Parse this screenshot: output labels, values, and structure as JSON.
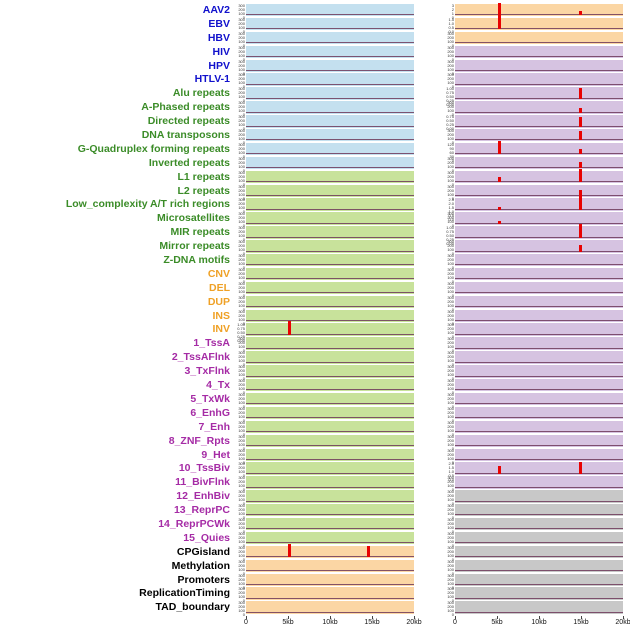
{
  "chart_data": {
    "type": "line",
    "title": "",
    "x_axis": {
      "tick_labels": [
        "0",
        "5kb",
        "10kb",
        "15kb",
        "20kb"
      ],
      "range_kb": [
        0,
        20
      ]
    },
    "default_yticks": [
      "300",
      "200",
      "100",
      "0"
    ],
    "group_colors": {
      "virus": "#1111cc",
      "repeat": "#3b8c28",
      "sv": "#efa126",
      "chromhmm": "#a52ba5",
      "other": "#000000"
    },
    "panel_colors": {
      "blue": "#c4e0ef",
      "green": "#c8e29b",
      "peach": "#fbd6a4",
      "purple": "#d6c3e1",
      "gray": "#c8c8c8"
    },
    "spike_color": "#e80202",
    "baseline_color": "#6e3a5a",
    "tracks": [
      {
        "label": "AAV2",
        "group": "virus",
        "left": {
          "bg": "blue"
        },
        "right": {
          "bg": "peach",
          "yticks": [
            "3",
            "2",
            "1",
            "0"
          ],
          "spikes": [
            {
              "x_kb": 5.3,
              "h": 1.15
            },
            {
              "x_kb": 14.9,
              "h": 0.4
            }
          ]
        }
      },
      {
        "label": "EBV",
        "group": "virus",
        "left": {
          "bg": "blue"
        },
        "right": {
          "bg": "peach",
          "yticks": [
            "1.5",
            "1.0",
            "0.5",
            "0.0"
          ],
          "spikes": [
            {
              "x_kb": 5.3,
              "h": 1.3
            }
          ]
        }
      },
      {
        "label": "HBV",
        "group": "virus",
        "left": {
          "bg": "blue"
        },
        "right": {
          "bg": "peach"
        }
      },
      {
        "label": "HIV",
        "group": "virus",
        "left": {
          "bg": "blue"
        },
        "right": {
          "bg": "purple"
        }
      },
      {
        "label": "HPV",
        "group": "virus",
        "left": {
          "bg": "blue"
        },
        "right": {
          "bg": "purple"
        }
      },
      {
        "label": "HTLV-1",
        "group": "virus",
        "left": {
          "bg": "blue"
        },
        "right": {
          "bg": "purple"
        }
      },
      {
        "label": "Alu repeats",
        "group": "repeat",
        "left": {
          "bg": "blue"
        },
        "right": {
          "bg": "purple",
          "yticks": [
            "1.00",
            "0.75",
            "0.50",
            "0.25",
            "0.00"
          ],
          "spikes": [
            {
              "x_kb": 14.9,
              "h": 1.0
            }
          ]
        }
      },
      {
        "label": "A-Phased repeats",
        "group": "repeat",
        "left": {
          "bg": "blue"
        },
        "right": {
          "bg": "purple",
          "spikes": [
            {
              "x_kb": 14.9,
              "h": 0.45
            }
          ]
        }
      },
      {
        "label": "Directed repeats",
        "group": "repeat",
        "left": {
          "bg": "blue"
        },
        "right": {
          "bg": "purple",
          "yticks": [
            "0.75",
            "0.50",
            "0.25",
            "0.00"
          ],
          "spikes": [
            {
              "x_kb": 14.9,
              "h": 0.9
            }
          ]
        }
      },
      {
        "label": "DNA transposons",
        "group": "repeat",
        "left": {
          "bg": "blue"
        },
        "right": {
          "bg": "purple",
          "spikes": [
            {
              "x_kb": 14.9,
              "h": 0.85
            }
          ]
        }
      },
      {
        "label": "G-Quadruplex forming repeats",
        "group": "repeat",
        "left": {
          "bg": "blue"
        },
        "right": {
          "bg": "purple",
          "yticks": [
            "120",
            "90",
            "60",
            "30",
            "0"
          ],
          "spikes": [
            {
              "x_kb": 5.3,
              "h": 1.2
            },
            {
              "x_kb": 14.9,
              "h": 0.5
            }
          ]
        }
      },
      {
        "label": "Inverted repeats",
        "group": "repeat",
        "left": {
          "bg": "blue"
        },
        "right": {
          "bg": "purple",
          "spikes": [
            {
              "x_kb": 14.9,
              "h": 0.6
            }
          ]
        }
      },
      {
        "label": "L1 repeats",
        "group": "repeat",
        "left": {
          "bg": "green"
        },
        "right": {
          "bg": "purple",
          "spikes": [
            {
              "x_kb": 5.3,
              "h": 0.45
            },
            {
              "x_kb": 14.9,
              "h": 1.2
            }
          ]
        }
      },
      {
        "label": "L2 repeats",
        "group": "repeat",
        "left": {
          "bg": "green"
        },
        "right": {
          "bg": "purple",
          "spikes": [
            {
              "x_kb": 14.9,
              "h": 0.5
            }
          ]
        }
      },
      {
        "label": "Low_complexity A/T rich regions",
        "group": "repeat",
        "left": {
          "bg": "green"
        },
        "right": {
          "bg": "purple",
          "yticks": [
            "2.5",
            "2.0",
            "1.5",
            "1.0",
            "0.5",
            "0.0"
          ],
          "spikes": [
            {
              "x_kb": 5.3,
              "h": 0.3
            },
            {
              "x_kb": 14.9,
              "h": 1.25
            }
          ]
        }
      },
      {
        "label": "Microsatellites",
        "group": "repeat",
        "left": {
          "bg": "green"
        },
        "right": {
          "bg": "purple",
          "spikes": [
            {
              "x_kb": 5.3,
              "h": 0.25
            }
          ]
        }
      },
      {
        "label": "MIR repeats",
        "group": "repeat",
        "left": {
          "bg": "green"
        },
        "right": {
          "bg": "purple",
          "yticks": [
            "1.00",
            "0.75",
            "0.50",
            "0.25",
            "0.00"
          ],
          "spikes": [
            {
              "x_kb": 14.9,
              "h": 1.2
            }
          ]
        }
      },
      {
        "label": "Mirror repeats",
        "group": "repeat",
        "left": {
          "bg": "green"
        },
        "right": {
          "bg": "purple",
          "spikes": [
            {
              "x_kb": 14.9,
              "h": 0.55
            }
          ]
        }
      },
      {
        "label": "Z-DNA motifs",
        "group": "repeat",
        "left": {
          "bg": "green"
        },
        "right": {
          "bg": "purple"
        }
      },
      {
        "label": "CNV",
        "group": "sv",
        "left": {
          "bg": "green"
        },
        "right": {
          "bg": "purple"
        }
      },
      {
        "label": "DEL",
        "group": "sv",
        "left": {
          "bg": "green"
        },
        "right": {
          "bg": "purple"
        }
      },
      {
        "label": "DUP",
        "group": "sv",
        "left": {
          "bg": "green"
        },
        "right": {
          "bg": "purple"
        }
      },
      {
        "label": "INS",
        "group": "sv",
        "left": {
          "bg": "green"
        },
        "right": {
          "bg": "purple"
        }
      },
      {
        "label": "INV",
        "group": "sv",
        "left": {
          "bg": "green",
          "yticks": [
            "1.00",
            "0.75",
            "0.50",
            "0.25",
            "0.00"
          ],
          "spikes": [
            {
              "x_kb": 5.2,
              "h": 1.3
            }
          ]
        },
        "right": {
          "bg": "purple"
        }
      },
      {
        "label": "1_TssA",
        "group": "chromhmm",
        "left": {
          "bg": "green"
        },
        "right": {
          "bg": "purple"
        }
      },
      {
        "label": "2_TssAFlnk",
        "group": "chromhmm",
        "left": {
          "bg": "green"
        },
        "right": {
          "bg": "purple"
        }
      },
      {
        "label": "3_TxFlnk",
        "group": "chromhmm",
        "left": {
          "bg": "green"
        },
        "right": {
          "bg": "purple"
        }
      },
      {
        "label": "4_Tx",
        "group": "chromhmm",
        "left": {
          "bg": "green"
        },
        "right": {
          "bg": "purple"
        }
      },
      {
        "label": "5_TxWk",
        "group": "chromhmm",
        "left": {
          "bg": "green"
        },
        "right": {
          "bg": "purple"
        }
      },
      {
        "label": "6_EnhG",
        "group": "chromhmm",
        "left": {
          "bg": "green"
        },
        "right": {
          "bg": "purple"
        }
      },
      {
        "label": "7_Enh",
        "group": "chromhmm",
        "left": {
          "bg": "green"
        },
        "right": {
          "bg": "purple"
        }
      },
      {
        "label": "8_ZNF_Rpts",
        "group": "chromhmm",
        "left": {
          "bg": "green"
        },
        "right": {
          "bg": "purple"
        }
      },
      {
        "label": "9_Het",
        "group": "chromhmm",
        "left": {
          "bg": "green"
        },
        "right": {
          "bg": "purple"
        }
      },
      {
        "label": "10_TssBiv",
        "group": "chromhmm",
        "left": {
          "bg": "green"
        },
        "right": {
          "bg": "purple",
          "yticks": [
            "2.0",
            "1.5",
            "1.0",
            "0.5",
            "0.0"
          ],
          "spikes": [
            {
              "x_kb": 5.3,
              "h": 0.7
            },
            {
              "x_kb": 14.9,
              "h": 1.1
            }
          ]
        }
      },
      {
        "label": "11_BivFlnk",
        "group": "chromhmm",
        "left": {
          "bg": "green"
        },
        "right": {
          "bg": "purple"
        }
      },
      {
        "label": "12_EnhBiv",
        "group": "chromhmm",
        "left": {
          "bg": "green"
        },
        "right": {
          "bg": "gray"
        }
      },
      {
        "label": "13_ReprPC",
        "group": "chromhmm",
        "left": {
          "bg": "green"
        },
        "right": {
          "bg": "gray"
        }
      },
      {
        "label": "14_ReprPCWk",
        "group": "chromhmm",
        "left": {
          "bg": "green"
        },
        "right": {
          "bg": "gray"
        }
      },
      {
        "label": "15_Quies",
        "group": "chromhmm",
        "left": {
          "bg": "green"
        },
        "right": {
          "bg": "gray"
        }
      },
      {
        "label": "CPGisland",
        "group": "other",
        "left": {
          "bg": "peach",
          "yticks": [
            "300",
            "200",
            "100",
            "0"
          ],
          "spikes": [
            {
              "x_kb": 5.2,
              "h": 1.2
            },
            {
              "x_kb": 14.6,
              "h": 1.0
            }
          ]
        },
        "right": {
          "bg": "gray"
        }
      },
      {
        "label": "Methylation",
        "group": "other",
        "left": {
          "bg": "peach"
        },
        "right": {
          "bg": "gray"
        }
      },
      {
        "label": "Promoters",
        "group": "other",
        "left": {
          "bg": "peach"
        },
        "right": {
          "bg": "gray"
        }
      },
      {
        "label": "ReplicationTiming",
        "group": "other",
        "left": {
          "bg": "peach"
        },
        "right": {
          "bg": "gray"
        }
      },
      {
        "label": "TAD_boundary",
        "group": "other",
        "left": {
          "bg": "peach"
        },
        "right": {
          "bg": "gray"
        }
      }
    ]
  }
}
